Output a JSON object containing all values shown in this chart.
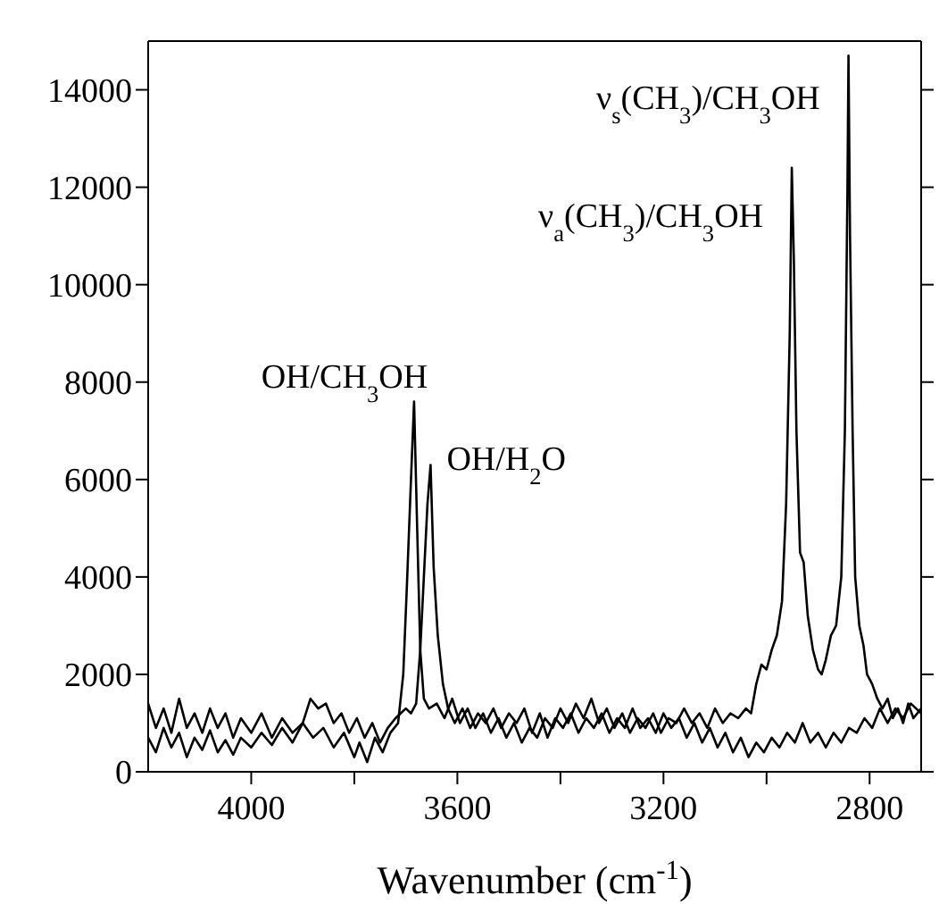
{
  "chart_data": {
    "type": "line",
    "xlabel": "Wavenumber (cm$^{-1}$)",
    "xlim": [
      4200,
      2700
    ],
    "xticks": [
      4000,
      {
        "value": 3800,
        "label": null
      },
      3600,
      {
        "value": 3400,
        "label": null
      },
      3200,
      {
        "value": 3000,
        "label": null
      },
      2800
    ],
    "ylim": [
      0,
      15000
    ],
    "yticks": [
      0,
      2000,
      4000,
      6000,
      8000,
      10000,
      12000,
      14000
    ],
    "marker": "none",
    "line_style": "solid",
    "annotations": [
      {
        "text": "ν$_{s}$(CH$_{3}$)/CH$_{3}$OH",
        "x": 2841,
        "y": 14700
      },
      {
        "text": "ν$_{a}$(CH$_{3}$)/CH$_{3}$OH",
        "x": 2951,
        "y": 12400
      },
      {
        "text": "OH/CH$_{3}$OH",
        "x": 3684,
        "y": 7600
      },
      {
        "text": "OH/H$_{2}$O",
        "x": 3652,
        "y": 6300
      }
    ],
    "series": [
      {
        "color": "#000000",
        "x": [
          4200,
          4185,
          4170,
          4155,
          4140,
          4125,
          4110,
          4095,
          4080,
          4065,
          4050,
          4035,
          4020,
          4000,
          3980,
          3960,
          3940,
          3920,
          3900,
          3880,
          3860,
          3840,
          3820,
          3800,
          3790,
          3775,
          3760,
          3745,
          3730,
          3715,
          3705,
          3698,
          3690,
          3684,
          3678,
          3672,
          3665,
          3655,
          3640,
          3625,
          3610,
          3595,
          3580,
          3565,
          3550,
          3535,
          3520,
          3505,
          3490,
          3475,
          3460,
          3445,
          3430,
          3415,
          3400,
          3385,
          3370,
          3355,
          3340,
          3325,
          3310,
          3295,
          3280,
          3265,
          3250,
          3235,
          3220,
          3205,
          3190,
          3175,
          3160,
          3145,
          3130,
          3115,
          3100,
          3085,
          3070,
          3055,
          3040,
          3030,
          3020,
          3010,
          3000,
          2990,
          2980,
          2970,
          2962,
          2955,
          2951,
          2947,
          2942,
          2935,
          2928,
          2920,
          2910,
          2900,
          2893,
          2885,
          2875,
          2865,
          2855,
          2848,
          2843,
          2841,
          2838,
          2833,
          2828,
          2820,
          2812,
          2805,
          2795,
          2785,
          2775,
          2765,
          2755,
          2745,
          2735,
          2725,
          2715,
          2700
        ],
        "values": [
          700,
          400,
          900,
          500,
          800,
          300,
          700,
          450,
          850,
          400,
          650,
          350,
          700,
          500,
          800,
          550,
          900,
          600,
          1000,
          700,
          900,
          500,
          800,
          300,
          600,
          200,
          700,
          400,
          800,
          1000,
          2000,
          3800,
          6000,
          7600,
          5000,
          2500,
          1500,
          1300,
          1400,
          1100,
          1500,
          1000,
          1300,
          900,
          1200,
          800,
          1100,
          700,
          1000,
          600,
          900,
          700,
          1100,
          900,
          1300,
          1000,
          1400,
          1100,
          1500,
          1000,
          1300,
          900,
          1200,
          800,
          1100,
          900,
          1200,
          800,
          1100,
          1000,
          1300,
          1000,
          1200,
          900,
          1300,
          1000,
          1200,
          1100,
          1300,
          1200,
          1800,
          2200,
          2100,
          2500,
          2800,
          3500,
          5500,
          9000,
          12400,
          10500,
          7000,
          4500,
          4300,
          3200,
          2500,
          2100,
          2000,
          2300,
          2800,
          3000,
          4000,
          7000,
          12000,
          14700,
          11000,
          7000,
          4000,
          3000,
          2600,
          2000,
          1800,
          1500,
          1300,
          1500,
          1100,
          1300,
          1000,
          1400,
          1100,
          1300
        ]
      },
      {
        "color": "#000000",
        "x": [
          4200,
          4185,
          4170,
          4155,
          4140,
          4125,
          4110,
          4095,
          4080,
          4065,
          4050,
          4035,
          4020,
          4000,
          3980,
          3960,
          3940,
          3920,
          3900,
          3885,
          3870,
          3855,
          3840,
          3825,
          3810,
          3795,
          3780,
          3765,
          3750,
          3735,
          3720,
          3700,
          3690,
          3680,
          3672,
          3665,
          3658,
          3652,
          3646,
          3638,
          3628,
          3618,
          3605,
          3590,
          3575,
          3560,
          3545,
          3530,
          3515,
          3500,
          3485,
          3470,
          3455,
          3440,
          3425,
          3410,
          3395,
          3380,
          3365,
          3350,
          3335,
          3320,
          3305,
          3290,
          3275,
          3260,
          3245,
          3230,
          3215,
          3200,
          3185,
          3170,
          3155,
          3140,
          3125,
          3110,
          3095,
          3080,
          3065,
          3050,
          3035,
          3020,
          3005,
          2990,
          2975,
          2960,
          2945,
          2930,
          2915,
          2900,
          2885,
          2870,
          2855,
          2840,
          2825,
          2810,
          2795,
          2780,
          2765,
          2750,
          2735,
          2720,
          2700
        ],
        "values": [
          1400,
          900,
          1300,
          800,
          1500,
          900,
          1200,
          800,
          1300,
          900,
          1200,
          700,
          1100,
          800,
          1200,
          700,
          1100,
          800,
          1000,
          1500,
          1300,
          1400,
          1000,
          1200,
          800,
          1100,
          700,
          1000,
          600,
          900,
          1100,
          1300,
          1200,
          1400,
          2500,
          4000,
          5500,
          6300,
          4200,
          2800,
          1800,
          1300,
          1000,
          1300,
          900,
          1200,
          1000,
          1300,
          900,
          1200,
          1000,
          1300,
          800,
          1200,
          700,
          1100,
          900,
          1200,
          800,
          1100,
          900,
          1200,
          800,
          1100,
          900,
          1300,
          900,
          1100,
          800,
          1200,
          900,
          1100,
          700,
          1000,
          600,
          900,
          500,
          800,
          400,
          700,
          300,
          600,
          400,
          700,
          500,
          800,
          600,
          1000,
          600,
          800,
          500,
          800,
          600,
          900,
          800,
          1100,
          900,
          1300,
          1000,
          1300,
          1100,
          1400,
          1200
        ]
      }
    ]
  }
}
